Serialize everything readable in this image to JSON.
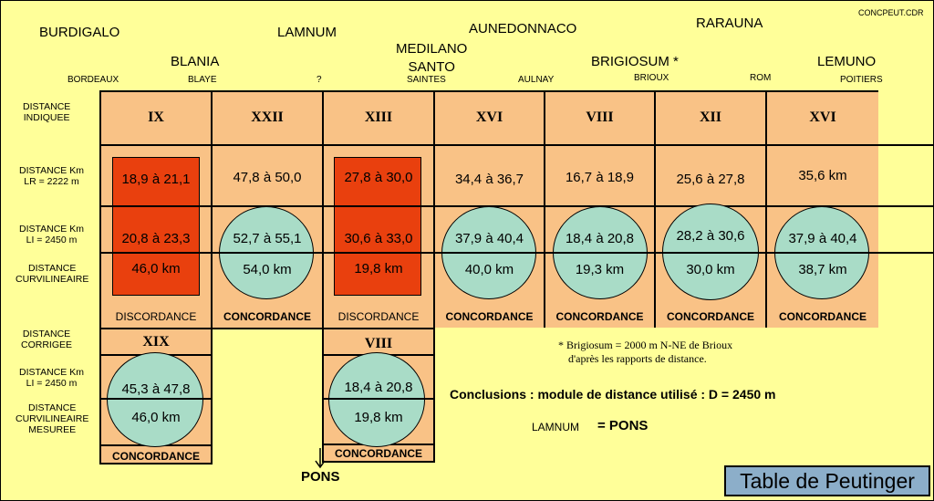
{
  "title_box": "Table de Peutinger",
  "file_label": "CONCPEUT.CDR",
  "latin_names": [
    "BURDIGALO",
    "BLANIA",
    "LAMNUM",
    "MEDILANO\nSANTO",
    "AUNEDONNACO",
    "BRIGIOSUM *",
    "RARAUNA",
    "LEMUNO"
  ],
  "modern_names": [
    "BORDEAUX",
    "BLAYE",
    "?",
    "SAINTES",
    "AULNAY",
    "BRIOUX",
    "ROM",
    "POITIERS"
  ],
  "row_labels": {
    "indicated": "DISTANCE\nINDIQUEE",
    "km_lr": "DISTANCE Km\nLR = 2222 m",
    "km_li": "DISTANCE Km\nLI = 2450 m",
    "curvilinear": "DISTANCE\nCURVILINEAIRE",
    "corrected": "DISTANCE\nCORRIGEE",
    "km_li_2": "DISTANCE Km\nLI = 2450 m",
    "curvilinear_measured": "DISTANCE\nCURVILINEAIRE\nMESUREE"
  },
  "segments": [
    {
      "indicated": "IX",
      "lr": "18,9 à 21,1",
      "li": "20,8 à 23,3",
      "curv": "46,0 km",
      "status": "DISCORDANCE",
      "style": "red"
    },
    {
      "indicated": "XXII",
      "lr": "47,8 à 50,0",
      "li": "52,7 à 55,1",
      "curv": "54,0 km",
      "status": "CONCORDANCE",
      "style": "circle"
    },
    {
      "indicated": "XIII",
      "lr": "27,8 à 30,0",
      "li": "30,6 à 33,0",
      "curv": "19,8 km",
      "status": "DISCORDANCE",
      "style": "red"
    },
    {
      "indicated": "XVI",
      "lr": "34,4 à 36,7",
      "li": "37,9 à 40,4",
      "curv": "40,0 km",
      "status": "CONCORDANCE",
      "style": "circle"
    },
    {
      "indicated": "VIII",
      "lr": "16,7 à 18,9",
      "li": "18,4 à 20,8",
      "curv": "19,3 km",
      "status": "CONCORDANCE",
      "style": "circle"
    },
    {
      "indicated": "XII",
      "lr": "25,6 à 27,8",
      "li": "28,2 à 30,6",
      "curv": "30,0 km",
      "status": "CONCORDANCE",
      "style": "circle"
    },
    {
      "indicated": "XVI",
      "lr": "35,6 km",
      "li": "37,9 à 40,4",
      "curv": "38,7 km",
      "status": "CONCORDANCE",
      "style": "circle"
    }
  ],
  "corrections": [
    {
      "indicated": "XIX",
      "li": "45,3 à 47,8",
      "curv": "46,0 km",
      "status": "CONCORDANCE"
    },
    {
      "indicated": "VIII",
      "li": "18,4 à 20,8",
      "curv": "19,8 km",
      "status": "CONCORDANCE"
    }
  ],
  "footnote_line1": "* Brigiosum = 2000 m N-NE de Brioux",
  "footnote_line2": "d'après les rapports de distance.",
  "conclusion": "Conclusions : module de distance utilisé :  D = 2450 m",
  "lamnum_label": "LAMNUM",
  "lamnum_eq": "= PONS",
  "arrow_label": "PONS",
  "colors": {
    "background": "#ffff99",
    "table": "#f9c286",
    "red": "#e9400e",
    "circle": "#a9dcc7",
    "title_box": "#8caec9"
  }
}
